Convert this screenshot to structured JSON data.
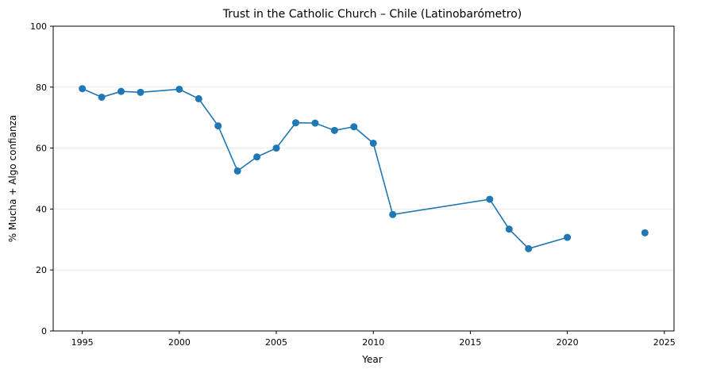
{
  "chart_data": {
    "type": "line",
    "title": "Trust in the Catholic Church – Chile (Latinobarómetro)",
    "xlabel": "Year",
    "ylabel": "% Mucha + Algo confianza",
    "xlim": [
      1993.5,
      2025.5
    ],
    "ylim": [
      0,
      100
    ],
    "xticks": [
      1995,
      2000,
      2005,
      2010,
      2015,
      2020,
      2025
    ],
    "yticks": [
      0,
      20,
      40,
      60,
      80,
      100
    ],
    "grid": "y",
    "color": "#1f77b4",
    "series": [
      {
        "segments": [
          {
            "x": [
              1995,
              1996,
              1997,
              1998,
              2000,
              2001,
              2002,
              2003,
              2004,
              2005,
              2006,
              2007,
              2008,
              2009,
              2010,
              2011,
              2016,
              2017,
              2018,
              2020
            ],
            "y": [
              79.5,
              76.7,
              78.6,
              78.3,
              79.3,
              76.2,
              67.3,
              52.5,
              57.1,
              60.0,
              68.3,
              68.2,
              65.8,
              67.0,
              61.6,
              38.2,
              43.2,
              33.4,
              27.0,
              30.7
            ]
          },
          {
            "x": [
              2024
            ],
            "y": [
              32.2
            ]
          }
        ]
      }
    ]
  }
}
